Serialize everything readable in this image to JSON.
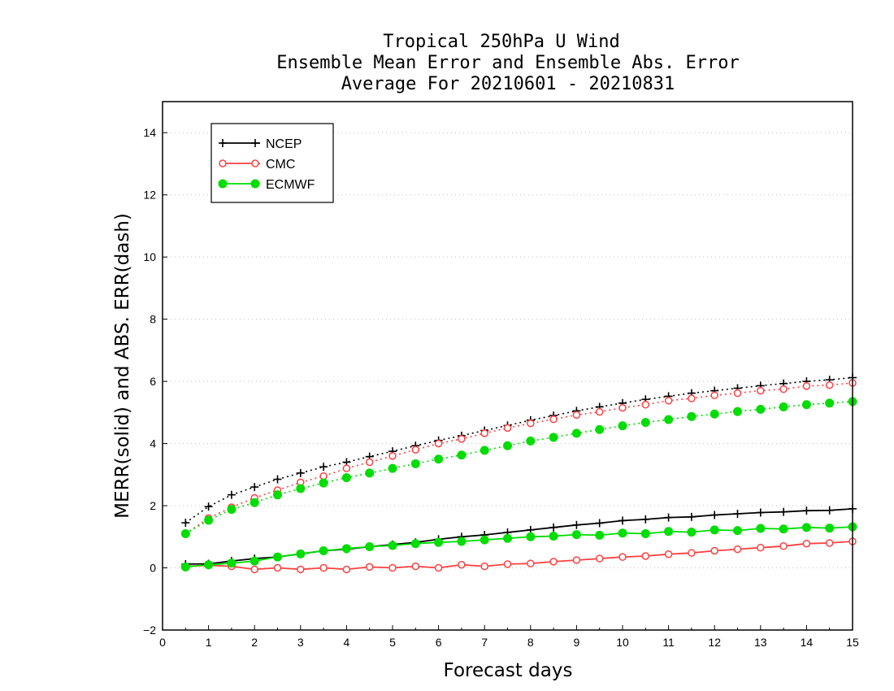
{
  "chart_data": {
    "type": "line",
    "title_lines": [
      "Tropical 250hPa U Wind",
      "Ensemble Mean Error and Ensemble Abs. Error",
      "Average For 20210601 - 20210831"
    ],
    "xlabel": "Forecast days",
    "ylabel": "MERR(solid) and ABS. ERR(dash)",
    "xlim": [
      0,
      15
    ],
    "ylim": [
      -2,
      15
    ],
    "x_ticks": [
      0,
      1,
      2,
      3,
      4,
      5,
      6,
      7,
      8,
      9,
      10,
      11,
      12,
      13,
      14,
      15
    ],
    "y_ticks": [
      -2,
      0,
      2,
      4,
      6,
      8,
      10,
      12,
      14
    ],
    "grid": true,
    "legend_position": "top-left",
    "x": [
      0.5,
      1,
      1.5,
      2,
      2.5,
      3,
      3.5,
      4,
      4.5,
      5,
      5.5,
      6,
      6.5,
      7,
      7.5,
      8,
      8.5,
      9,
      9.5,
      10,
      10.5,
      11,
      11.5,
      12,
      12.5,
      13,
      13.5,
      14,
      14.5,
      15
    ],
    "series": [
      {
        "name": "NCEP",
        "color": "#000000",
        "marker": "plus",
        "merr": [
          0.12,
          0.13,
          0.22,
          0.3,
          0.35,
          0.45,
          0.55,
          0.6,
          0.68,
          0.75,
          0.82,
          0.92,
          1.0,
          1.06,
          1.14,
          1.22,
          1.3,
          1.38,
          1.44,
          1.52,
          1.56,
          1.62,
          1.64,
          1.7,
          1.74,
          1.78,
          1.8,
          1.84,
          1.85,
          1.9
        ],
        "abs_err": [
          1.45,
          1.97,
          2.35,
          2.6,
          2.85,
          3.05,
          3.25,
          3.4,
          3.58,
          3.75,
          3.93,
          4.1,
          4.25,
          4.42,
          4.58,
          4.75,
          4.9,
          5.05,
          5.18,
          5.3,
          5.42,
          5.52,
          5.62,
          5.7,
          5.78,
          5.86,
          5.93,
          6.0,
          6.05,
          6.12
        ]
      },
      {
        "name": "CMC",
        "color": "#ff4040",
        "marker": "circle-open",
        "merr": [
          0.05,
          0.08,
          0.05,
          -0.05,
          0.0,
          -0.05,
          0.0,
          -0.05,
          0.03,
          0.0,
          0.05,
          0.0,
          0.1,
          0.05,
          0.12,
          0.14,
          0.2,
          0.25,
          0.3,
          0.35,
          0.38,
          0.44,
          0.48,
          0.55,
          0.6,
          0.65,
          0.7,
          0.78,
          0.8,
          0.85
        ],
        "abs_err": [
          1.1,
          1.6,
          1.95,
          2.25,
          2.5,
          2.75,
          2.95,
          3.2,
          3.4,
          3.6,
          3.8,
          4.0,
          4.15,
          4.33,
          4.5,
          4.65,
          4.78,
          4.92,
          5.02,
          5.15,
          5.25,
          5.38,
          5.45,
          5.55,
          5.62,
          5.7,
          5.75,
          5.85,
          5.88,
          5.95
        ]
      },
      {
        "name": "ECMWF",
        "color": "#00dd00",
        "marker": "circle-filled",
        "merr": [
          0.03,
          0.1,
          0.15,
          0.22,
          0.35,
          0.45,
          0.55,
          0.62,
          0.68,
          0.72,
          0.78,
          0.82,
          0.85,
          0.9,
          0.95,
          1.0,
          1.02,
          1.07,
          1.05,
          1.12,
          1.1,
          1.17,
          1.15,
          1.22,
          1.2,
          1.27,
          1.25,
          1.3,
          1.28,
          1.32
        ],
        "abs_err": [
          1.1,
          1.53,
          1.88,
          2.1,
          2.35,
          2.55,
          2.73,
          2.9,
          3.05,
          3.2,
          3.35,
          3.5,
          3.63,
          3.78,
          3.93,
          4.08,
          4.2,
          4.33,
          4.45,
          4.57,
          4.68,
          4.77,
          4.87,
          4.95,
          5.03,
          5.1,
          5.18,
          5.25,
          5.3,
          5.35
        ]
      }
    ]
  }
}
